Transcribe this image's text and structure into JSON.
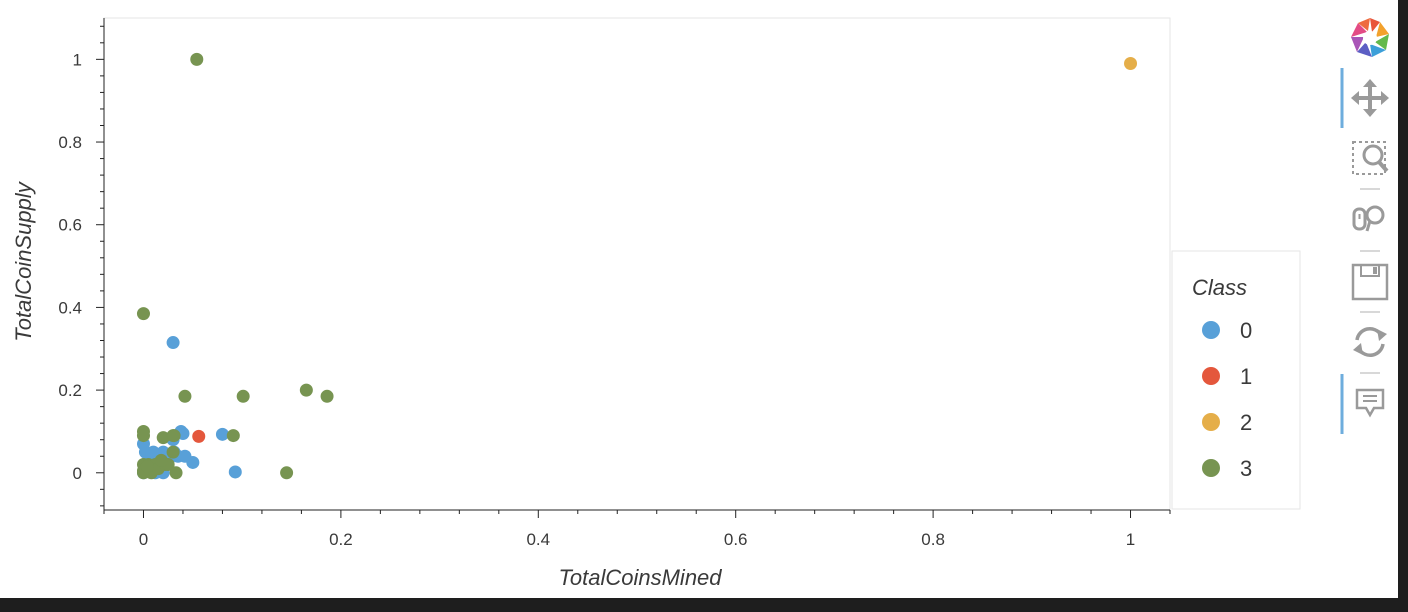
{
  "chart_data": {
    "type": "scatter",
    "xlabel": "TotalCoinsMined",
    "ylabel": "TotalCoinSupply",
    "xlim": [
      -0.04,
      1.04
    ],
    "ylim": [
      -0.09,
      1.1
    ],
    "x_ticks": [
      0,
      0.2,
      0.4,
      0.6,
      0.8,
      1
    ],
    "x_tick_labels": [
      "0",
      "0.2",
      "0.4",
      "0.6",
      "0.8",
      "1"
    ],
    "y_ticks": [
      0,
      0.2,
      0.4,
      0.6,
      0.8,
      1
    ],
    "y_tick_labels": [
      "0",
      "0.2",
      "0.4",
      "0.6",
      "0.8",
      "1"
    ],
    "grid": false,
    "legend": {
      "title": "Class",
      "placement": "right"
    },
    "series": [
      {
        "name": "0",
        "color": "#58a0d8",
        "x": [
          0.0,
          0.002,
          0.005,
          0.01,
          0.012,
          0.015,
          0.02,
          0.025,
          0.03,
          0.031,
          0.035,
          0.038,
          0.04,
          0.042,
          0.05,
          0.08,
          0.093,
          0.005,
          0.01,
          0.02,
          0.03,
          0.0,
          0.012,
          0.022
        ],
        "y": [
          0.07,
          0.05,
          0.03,
          0.05,
          0.0,
          0.02,
          0.0,
          0.03,
          0.315,
          0.05,
          0.04,
          0.1,
          0.095,
          0.04,
          0.025,
          0.093,
          0.002,
          0.01,
          0.01,
          0.05,
          0.08,
          0.0,
          0.04,
          0.02
        ]
      },
      {
        "name": "1",
        "color": "#e4573c",
        "x": [
          0.056
        ],
        "y": [
          0.088
        ]
      },
      {
        "name": "2",
        "color": "#e5ae49",
        "x": [
          1.0
        ],
        "y": [
          0.99
        ]
      },
      {
        "name": "3",
        "color": "#779451",
        "x": [
          0.0,
          0.0,
          0.0,
          0.0,
          0.0,
          0.002,
          0.005,
          0.008,
          0.01,
          0.012,
          0.015,
          0.02,
          0.022,
          0.025,
          0.03,
          0.03,
          0.031,
          0.033,
          0.042,
          0.054,
          0.091,
          0.101,
          0.145,
          0.165,
          0.186,
          0.0,
          0.004,
          0.018
        ],
        "y": [
          0.385,
          0.1,
          0.09,
          0.02,
          0.0,
          0.01,
          0.02,
          0.0,
          0.01,
          0.02,
          0.01,
          0.085,
          0.02,
          0.02,
          0.05,
          0.09,
          0.09,
          0.0,
          0.185,
          1.0,
          0.09,
          0.185,
          0.0,
          0.2,
          0.185,
          0.005,
          0.015,
          0.03
        ]
      }
    ]
  },
  "toolbar": {
    "items": [
      {
        "name": "bokeh-logo-icon",
        "active": false
      },
      {
        "name": "pan-icon",
        "active": true
      },
      {
        "name": "box-zoom-icon",
        "active": false
      },
      {
        "name": "wheel-zoom-icon",
        "active": false
      },
      {
        "name": "save-icon",
        "active": false
      },
      {
        "name": "reset-icon",
        "active": false
      },
      {
        "name": "hover-icon",
        "active": true
      }
    ]
  },
  "colors": {
    "active_tool": "#6eaddd",
    "frame": "#e6e6e6"
  }
}
